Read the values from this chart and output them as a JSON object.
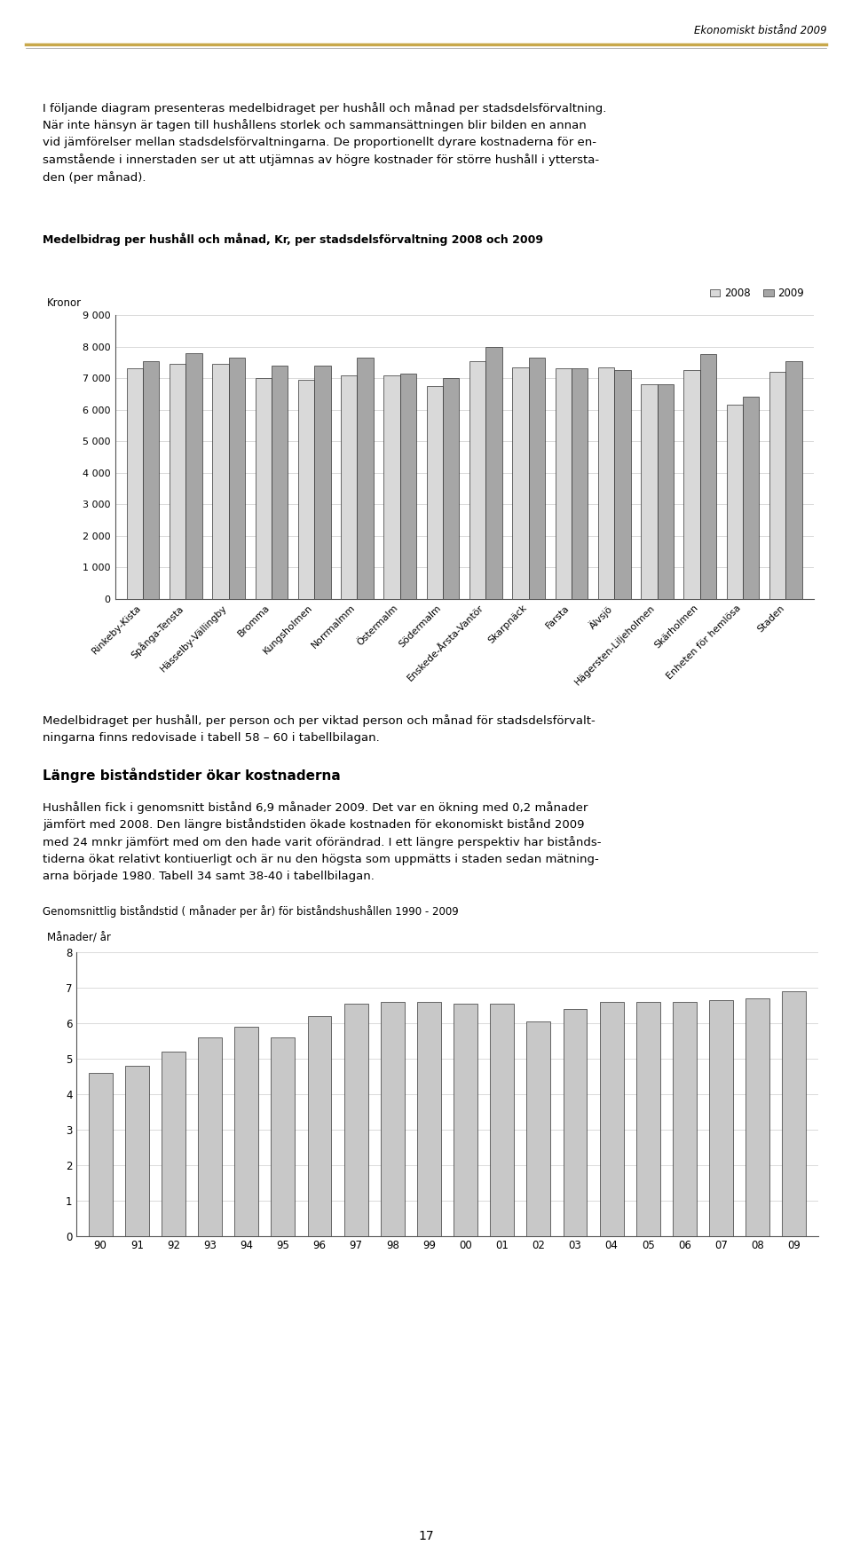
{
  "page_header": "Ekonomiskt bistånd 2009",
  "header_line_color": "#c8a84b",
  "intro_line1": "I följande diagram presenteras medelbidraget per hushåll och månad per stadsdelsförvaltning.",
  "intro_line2": "När inte hänsyn är tagen till hushållens storlek och sammansättningen blir bilden en annan",
  "intro_line3": "vid jämförelser mellan stadsdelsförvaltningarna. De proportionellt dyrare kostnaderna för en-",
  "intro_line4": "samstående i innerstaden ser ut att utjämnas av högre kostnader för större hushåll i yttersta-",
  "intro_line5": "den (per månad).",
  "chart1_title": "Medelbidrag per hushåll och månad, Kr, per stadsdelsförvaltning 2008 och 2009",
  "chart1_ylabel": "Kronor",
  "chart1_ylim": [
    0,
    9000
  ],
  "chart1_yticks": [
    0,
    1000,
    2000,
    3000,
    4000,
    5000,
    6000,
    7000,
    8000,
    9000
  ],
  "chart1_ytick_labels": [
    "0",
    "1 000",
    "2 000",
    "3 000",
    "4 000",
    "5 000",
    "6 000",
    "7 000",
    "8 000",
    "9 000"
  ],
  "chart1_categories": [
    "Rinkeby-Kista",
    "Spånga-Tensta",
    "Hässelby-Vällingby",
    "Bromma",
    "Kungsholmen",
    "Norrmalmm",
    "Östermalm",
    "Södermalm",
    "Enskede-Årsta-Vantör",
    "Skarpnäck",
    "Farsta",
    "Älvsjö",
    "Hägersten-Liljeholmen",
    "Skärholmen",
    "Enheten för hemlösa",
    "Staden"
  ],
  "chart1_values_2008": [
    7300,
    7450,
    7450,
    7000,
    6950,
    7100,
    7100,
    6750,
    7550,
    7350,
    7300,
    7350,
    6800,
    7250,
    6150,
    7200
  ],
  "chart1_values_2009": [
    7550,
    7800,
    7650,
    7400,
    7400,
    7650,
    7150,
    7000,
    8000,
    7650,
    7300,
    7250,
    6800,
    7750,
    6400,
    7550
  ],
  "chart1_color_2008": "#d9d9d9",
  "chart1_color_2009": "#a6a6a6",
  "legend_2008": "2008",
  "legend_2009": "2009",
  "between_text1": "Medelbidraget per hushåll, per person och per viktad person och månad för stadsdelsförvalt-",
  "between_text2": "ningarna finns redovisade i tabell 58 – 60 i tabellbilagan.",
  "section_title": "Längre biståndstider ökar kostnaderna",
  "section_text1": "Hushållen fick i genomsnitt bistånd 6,9 månader 2009. Det var en ökning med 0,2 månader",
  "section_text2": "jämfört med 2008. Den längre biståndstiden ökade kostnaden för ekonomiskt bistånd 2009",
  "section_text3": "med 24 mnkr jämfört med om den hade varit oförändrad. I ett längre perspektiv har bistånds-",
  "section_text4": "tiderna ökat relativt kontiuerligt och är nu den högsta som uppmätts i staden sedan mätning-",
  "section_text5": "arna började 1980. Tabell 34 samt 38-40 i tabellbilagan.",
  "chart2_title": "Genomsnittlig biståndstid ( månader per år) för biståndshushållen 1990 - 2009",
  "chart2_ylabel": "Månader/ år",
  "chart2_ylim": [
    0,
    8
  ],
  "chart2_yticks": [
    0,
    1,
    2,
    3,
    4,
    5,
    6,
    7,
    8
  ],
  "chart2_categories": [
    "90",
    "91",
    "92",
    "93",
    "94",
    "95",
    "96",
    "97",
    "98",
    "99",
    "00",
    "01",
    "02",
    "03",
    "04",
    "05",
    "06",
    "07",
    "08",
    "09"
  ],
  "chart2_values": [
    4.6,
    4.8,
    5.2,
    5.6,
    5.9,
    5.6,
    6.2,
    6.55,
    6.6,
    6.6,
    6.55,
    6.55,
    6.05,
    6.4,
    6.6,
    6.6,
    6.6,
    6.65,
    6.7,
    6.9
  ],
  "chart2_color": "#c8c8c8",
  "page_number": "17",
  "background_color": "#ffffff",
  "text_color": "#000000"
}
